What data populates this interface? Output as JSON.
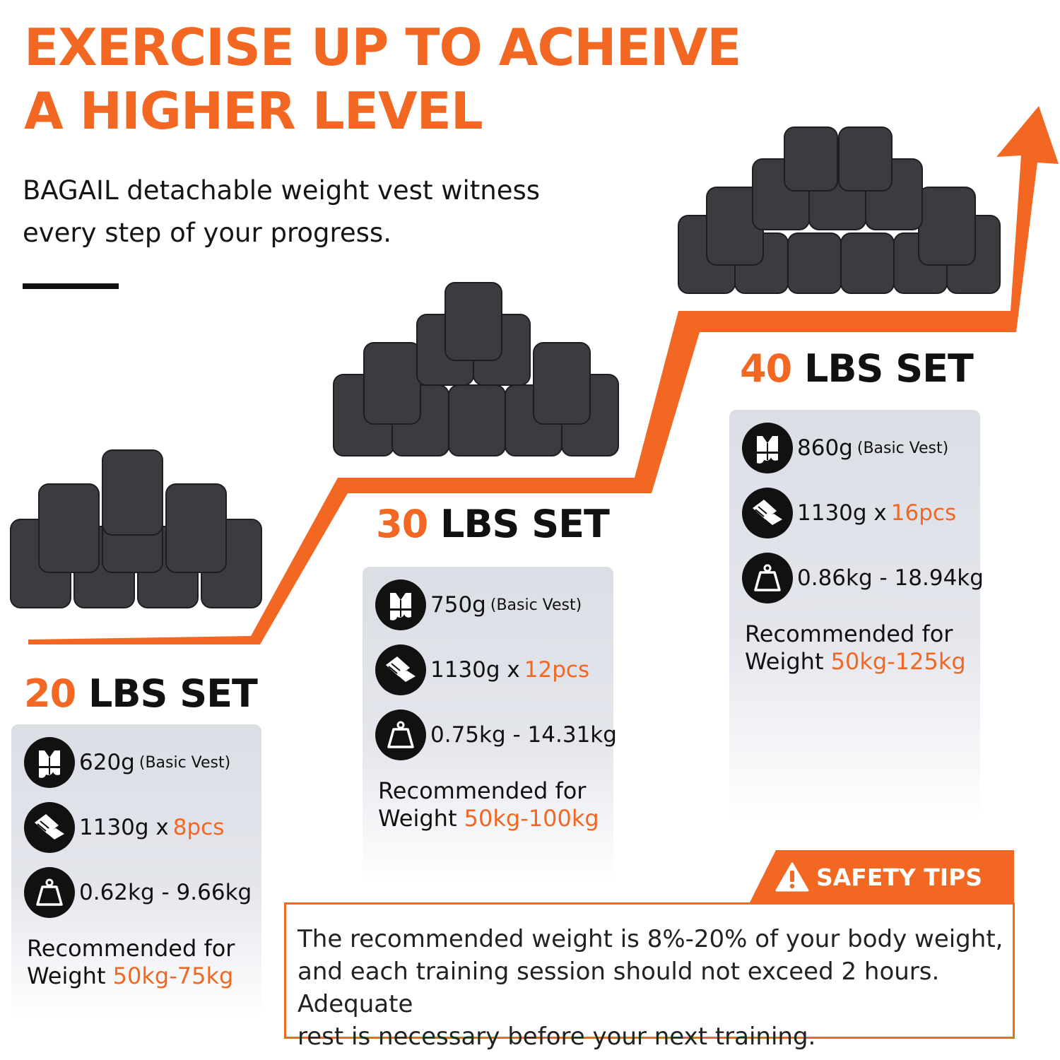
{
  "title_lines": [
    "EXERCISE UP TO ACHEIVE",
    "A HIGHER LEVEL"
  ],
  "subtitle_lines": [
    "BAGAIL detachable weight vest witness",
    "every step of your progress."
  ],
  "colors": {
    "accent": "#f26722",
    "text": "#111111",
    "card": "#dcdee6",
    "weight_block": "#3a3c40"
  },
  "sets": [
    {
      "number": "20",
      "label": "LBS SET",
      "vest_weight": "620g",
      "vest_note": "(Basic Vest)",
      "block_weight": "1130g x",
      "block_count": "8pcs",
      "range": "0.62kg - 9.66kg",
      "rec_line1": "Recommended for",
      "rec_prefix": "Weight",
      "rec_range": "50kg-75kg"
    },
    {
      "number": "30",
      "label": "LBS SET",
      "vest_weight": "750g",
      "vest_note": "(Basic Vest)",
      "block_weight": "1130g x",
      "block_count": "12pcs",
      "range": "0.75kg - 14.31kg",
      "rec_line1": "Recommended for",
      "rec_prefix": "Weight",
      "rec_range": "50kg-100kg"
    },
    {
      "number": "40",
      "label": "LBS SET",
      "vest_weight": "860g",
      "vest_note": "(Basic Vest)",
      "block_weight": "1130g x",
      "block_count": "16pcs",
      "range": "0.86kg - 18.94kg",
      "rec_line1": "Recommended for",
      "rec_prefix": "Weight",
      "rec_range": "50kg-125kg"
    }
  ],
  "icons": [
    "vest-icon",
    "weight-blocks-icon",
    "kettle-weight-icon",
    "warning-icon",
    "up-arrow-icon"
  ],
  "safety": {
    "label": "SAFETY TIPS",
    "lines": [
      "The recommended weight is 8%-20% of your body weight,",
      "and each training session should not exceed 2 hours. Adequate",
      "rest is necessary before your next training."
    ]
  }
}
